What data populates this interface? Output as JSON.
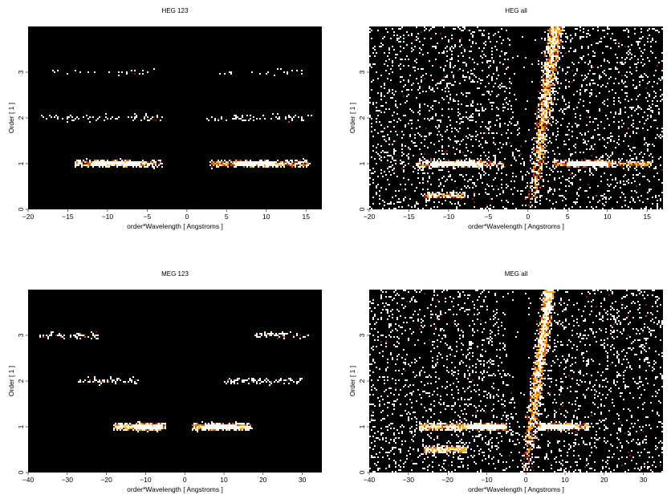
{
  "chart_data": [
    {
      "type": "heatmap",
      "title": "HEG 123",
      "xlabel": "order*Wavelength [ Angstroms ]",
      "ylabel": "Order [ 1 ]",
      "xlim": [
        -20,
        17
      ],
      "ylim": [
        0,
        4
      ],
      "xticks": [
        -20,
        -15,
        -10,
        -5,
        0,
        5,
        10,
        15
      ],
      "yticks": [
        0,
        1,
        2,
        3
      ],
      "colormap": [
        "#000000",
        "#8b1a00",
        "#e05a00",
        "#ffb000",
        "#ffffff"
      ],
      "features": {
        "order_bands": [
          {
            "order": 1,
            "x_ranges": [
              [
                -14,
                -3
              ],
              [
                3,
                15.5
              ]
            ],
            "peak_ranges": [
              [
                -12,
                -6
              ],
              [
                6,
                11
              ]
            ],
            "density": "high"
          },
          {
            "order": 2,
            "x_ranges": [
              [
                -18.5,
                -2.5
              ],
              [
                2.5,
                16
              ]
            ],
            "density": "low"
          },
          {
            "order": 3,
            "x_ranges": [
              [
                -17,
                -4
              ],
              [
                4,
                15
              ]
            ],
            "density": "sparse"
          }
        ],
        "diagonal_streak": null,
        "background_density": 0
      }
    },
    {
      "type": "heatmap",
      "title": "HEG all",
      "xlabel": "order*Wavelength [ Angstroms ]",
      "ylabel": "Order [ 1 ]",
      "xlim": [
        -20,
        17
      ],
      "ylim": [
        0,
        4
      ],
      "xticks": [
        -20,
        -15,
        -10,
        -5,
        0,
        5,
        10,
        15
      ],
      "yticks": [
        0,
        1,
        2,
        3
      ],
      "colormap": [
        "#000000",
        "#8b1a00",
        "#e05a00",
        "#ffb000",
        "#ffffff"
      ],
      "features": {
        "order_bands": [
          {
            "order": 1,
            "x_ranges": [
              [
                -14,
                -3
              ],
              [
                3,
                15.5
              ]
            ],
            "peak_ranges": [
              [
                -12,
                -6
              ],
              [
                5,
                10
              ]
            ],
            "density": "high"
          },
          {
            "order": 0.3,
            "x_ranges": [
              [
                -13,
                -8
              ]
            ],
            "density": "high"
          }
        ],
        "diagonal_streak": {
          "x_at_bottom": 0.5,
          "x_at_top": 3.5,
          "width": 1.2
        },
        "background_density": 0.5
      }
    },
    {
      "type": "heatmap",
      "title": "MEG 123",
      "xlabel": "order*Wavelength [ Angstroms ]",
      "ylabel": "Order [ 1 ]",
      "xlim": [
        -40,
        35
      ],
      "ylim": [
        0,
        4
      ],
      "xticks": [
        -40,
        -30,
        -20,
        -10,
        0,
        10,
        20,
        30
      ],
      "yticks": [
        0,
        1,
        2,
        3
      ],
      "colormap": [
        "#000000",
        "#8b1a00",
        "#e05a00",
        "#ffb000",
        "#ffffff"
      ],
      "features": {
        "order_bands": [
          {
            "order": 1,
            "x_ranges": [
              [
                -18,
                -5
              ],
              [
                2,
                17
              ]
            ],
            "peak_ranges": [
              [
                -13,
                -6
              ],
              [
                5,
                13
              ]
            ],
            "density": "high"
          },
          {
            "order": 2,
            "x_ranges": [
              [
                -27,
                -12
              ],
              [
                10,
                30
              ]
            ],
            "density": "low"
          },
          {
            "order": 3,
            "x_ranges": [
              [
                -37,
                -22
              ],
              [
                18,
                32
              ]
            ],
            "density": "low"
          }
        ],
        "diagonal_streak": null,
        "background_density": 0
      }
    },
    {
      "type": "heatmap",
      "title": "MEG all",
      "xlabel": "order*Wavelength [ Angstroms ]",
      "ylabel": "Order [ 1 ]",
      "xlim": [
        -40,
        35
      ],
      "ylim": [
        0,
        4
      ],
      "xticks": [
        -40,
        -30,
        -20,
        -10,
        0,
        10,
        20,
        30
      ],
      "yticks": [
        0,
        1,
        2,
        3
      ],
      "colormap": [
        "#000000",
        "#8b1a00",
        "#e05a00",
        "#ffb000",
        "#ffffff"
      ],
      "features": {
        "order_bands": [
          {
            "order": 1,
            "x_ranges": [
              [
                -27,
                -5
              ],
              [
                3,
                16
              ]
            ],
            "peak_ranges": [
              [
                -15,
                -5
              ],
              [
                4,
                12
              ]
            ],
            "density": "high"
          },
          {
            "order": 0.5,
            "x_ranges": [
              [
                -26,
                -15
              ]
            ],
            "density": "high"
          }
        ],
        "diagonal_streak": {
          "x_at_bottom": 0,
          "x_at_top": 6,
          "width": 2
        },
        "background_density": 0.5
      }
    }
  ]
}
